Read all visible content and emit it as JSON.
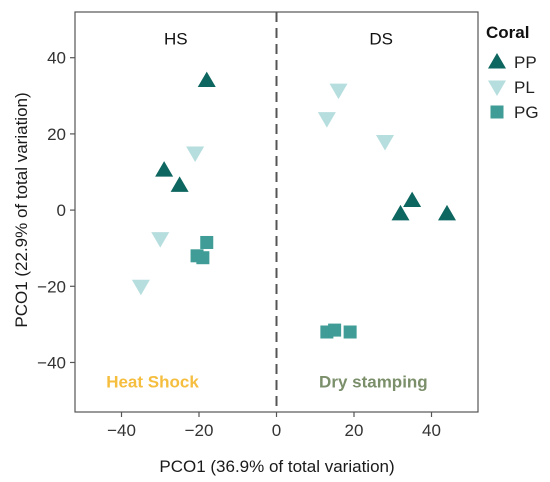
{
  "chart_data": {
    "type": "scatter",
    "xlabel": "PCO1 (36.9% of total variation)",
    "ylabel": "PCO1 (22.9% of total variation)",
    "xlim": [
      -52,
      52
    ],
    "ylim": [
      -53,
      52
    ],
    "xticks": [
      -40,
      -20,
      0,
      20,
      40
    ],
    "yticks": [
      -40,
      -20,
      0,
      20,
      40
    ],
    "grid": false,
    "legend_title": "Coral",
    "legend_position": "right",
    "panel_labels": [
      {
        "text": "HS",
        "x": -26,
        "y": 45
      },
      {
        "text": "DS",
        "x": 27,
        "y": 45
      }
    ],
    "divider_x": 0,
    "annotations": [
      {
        "text": "Heat Shock",
        "x": -32,
        "y": -45,
        "color": "#F5BE3E"
      },
      {
        "text": "Dry stamping",
        "x": 25,
        "y": -45,
        "color": "#7A8F6A"
      }
    ],
    "series": [
      {
        "name": "PP",
        "marker": "triangle-up",
        "color": "#0E6660",
        "points": [
          {
            "x": -18,
            "y": 34
          },
          {
            "x": -29,
            "y": 10.5
          },
          {
            "x": -25,
            "y": 6.5
          },
          {
            "x": 32,
            "y": -1
          },
          {
            "x": 35,
            "y": 2.5
          },
          {
            "x": 44,
            "y": -1
          }
        ]
      },
      {
        "name": "PL",
        "marker": "triangle-down",
        "color": "#B7DEDE",
        "points": [
          {
            "x": -21,
            "y": 15
          },
          {
            "x": -30,
            "y": -7.5
          },
          {
            "x": -35,
            "y": -20
          },
          {
            "x": 16,
            "y": 31.5
          },
          {
            "x": 13,
            "y": 24
          },
          {
            "x": 28,
            "y": 18
          }
        ]
      },
      {
        "name": "PG",
        "marker": "square",
        "color": "#3F9C96",
        "points": [
          {
            "x": -18,
            "y": -8.5
          },
          {
            "x": -20.5,
            "y": -12
          },
          {
            "x": -19,
            "y": -12.5
          },
          {
            "x": 13,
            "y": -32
          },
          {
            "x": 15,
            "y": -31.5
          },
          {
            "x": 19,
            "y": -32
          }
        ]
      }
    ]
  }
}
